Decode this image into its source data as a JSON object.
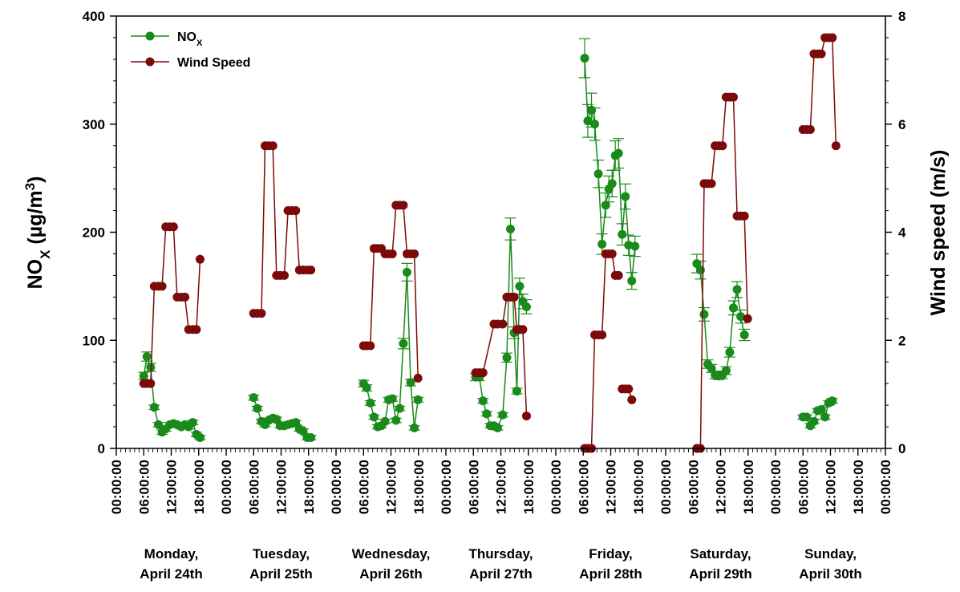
{
  "chart_data": {
    "type": "line",
    "title": "",
    "xlabel": "",
    "y_left_label_main": "NO",
    "y_left_label_sub": "X",
    "y_left_label_unit": " (µg/m",
    "y_left_label_sup": "3",
    "y_left_label_close": ")",
    "y_right_label": "Wind speed (m/s)",
    "ylim_left": [
      0,
      400
    ],
    "ylim_right": [
      0,
      8
    ],
    "y_left_ticks": [
      "0",
      "100",
      "200",
      "300",
      "400"
    ],
    "y_right_ticks": [
      "0",
      "2",
      "4",
      "6",
      "8"
    ],
    "x_range_hours": [
      0,
      168
    ],
    "x_tick_labels": [
      "00:00:00",
      "06:00:00",
      "12:00:00",
      "18:00:00",
      "00:00:00",
      "06:00:00",
      "12:00:00",
      "18:00:00",
      "00:00:00",
      "06:00:00",
      "12:00:00",
      "18:00:00",
      "00:00:00",
      "06:00:00",
      "12:00:00",
      "18:00:00",
      "00:00:00",
      "06:00:00",
      "12:00:00",
      "18:00:00",
      "00:00:00",
      "06:00:00",
      "12:00:00",
      "18:00:00",
      "00:00:00",
      "06:00:00",
      "12:00:00",
      "18:00:00",
      "00:00:00"
    ],
    "days": [
      {
        "line1": "Monday,",
        "line2": "April 24th"
      },
      {
        "line1": "Tuesday,",
        "line2": "April 25th"
      },
      {
        "line1": "Wednesday,",
        "line2": "April 26th"
      },
      {
        "line1": "Thursday,",
        "line2": "April 27th"
      },
      {
        "line1": "Friday,",
        "line2": "April 28th"
      },
      {
        "line1": "Saturday,",
        "line2": "April 29th"
      },
      {
        "line1": "Sunday,",
        "line2": "April 30th"
      }
    ],
    "grid": false,
    "legend_position": "top-left",
    "series": [
      {
        "name": "NO",
        "name_sub": "X",
        "axis": "left",
        "color": "#1a8a1a",
        "segments": [
          [
            [
              6.0,
              67
            ],
            [
              6.7,
              85
            ],
            [
              7.5,
              75
            ],
            [
              8.3,
              38
            ],
            [
              9.2,
              22
            ],
            [
              10.0,
              15
            ],
            [
              10.8,
              18
            ],
            [
              11.7,
              22
            ],
            [
              12.5,
              23
            ],
            [
              13.3,
              22
            ],
            [
              14.2,
              20
            ],
            [
              15.0,
              22
            ],
            [
              15.8,
              20
            ],
            [
              16.7,
              24
            ],
            [
              17.5,
              13
            ],
            [
              18.3,
              10
            ]
          ],
          [
            [
              30.0,
              47
            ],
            [
              30.8,
              37
            ],
            [
              31.7,
              25
            ],
            [
              32.5,
              22
            ],
            [
              33.3,
              26
            ],
            [
              34.2,
              28
            ],
            [
              35.0,
              27
            ],
            [
              35.8,
              21
            ],
            [
              36.7,
              21
            ],
            [
              37.5,
              22
            ],
            [
              38.3,
              23
            ],
            [
              39.2,
              24
            ],
            [
              40.0,
              18
            ],
            [
              40.8,
              16
            ],
            [
              41.7,
              10
            ],
            [
              42.5,
              10
            ]
          ],
          [
            [
              54.0,
              60
            ],
            [
              54.7,
              56
            ],
            [
              55.5,
              42
            ],
            [
              56.3,
              29
            ],
            [
              57.1,
              20
            ],
            [
              57.9,
              21
            ],
            [
              58.7,
              25
            ],
            [
              59.5,
              45
            ],
            [
              60.3,
              46
            ],
            [
              61.1,
              26
            ],
            [
              61.9,
              37
            ],
            [
              62.7,
              97
            ],
            [
              63.5,
              163
            ],
            [
              64.3,
              61
            ],
            [
              65.1,
              19
            ],
            [
              65.9,
              45
            ]
          ],
          [
            [
              78.5,
              66
            ],
            [
              79.3,
              66
            ],
            [
              80.1,
              44
            ],
            [
              80.9,
              32
            ],
            [
              81.7,
              21
            ],
            [
              82.5,
              21
            ],
            [
              83.3,
              19
            ],
            [
              84.4,
              31
            ],
            [
              85.3,
              84
            ],
            [
              86.1,
              203
            ],
            [
              86.9,
              107
            ],
            [
              87.5,
              53
            ],
            [
              88.1,
              150
            ],
            [
              88.8,
              136
            ],
            [
              89.6,
              131
            ]
          ],
          [
            [
              102.3,
              361
            ],
            [
              103.0,
              303
            ],
            [
              103.8,
              313
            ],
            [
              104.5,
              300
            ],
            [
              105.3,
              254
            ],
            [
              106.1,
              189
            ],
            [
              106.9,
              225
            ],
            [
              107.6,
              240
            ],
            [
              108.3,
              245
            ],
            [
              109.0,
              271
            ],
            [
              109.7,
              273
            ],
            [
              110.5,
              198
            ],
            [
              111.2,
              233
            ],
            [
              111.9,
              188
            ],
            [
              112.6,
              155
            ],
            [
              113.3,
              187
            ]
          ],
          [
            [
              126.8,
              171
            ],
            [
              127.6,
              165
            ],
            [
              128.4,
              124
            ],
            [
              129.2,
              78
            ],
            [
              130.0,
              74
            ],
            [
              130.8,
              68
            ],
            [
              131.6,
              67
            ],
            [
              132.4,
              68
            ],
            [
              133.2,
              72
            ],
            [
              134.0,
              89
            ],
            [
              134.8,
              130
            ],
            [
              135.6,
              147
            ],
            [
              136.4,
              122
            ],
            [
              137.2,
              105
            ]
          ],
          [
            [
              150.0,
              29
            ],
            [
              150.8,
              29
            ],
            [
              151.6,
              21
            ],
            [
              152.4,
              25
            ],
            [
              153.2,
              35
            ],
            [
              154.0,
              36
            ],
            [
              154.8,
              29
            ],
            [
              155.6,
              42
            ],
            [
              156.4,
              44
            ]
          ]
        ]
      },
      {
        "name": "Wind Speed",
        "axis": "right",
        "color": "#7b0a0a",
        "segments": [
          [
            [
              6.0,
              1.2
            ],
            [
              6.7,
              1.2
            ],
            [
              7.5,
              1.2
            ],
            [
              8.3,
              3.0
            ],
            [
              9.2,
              3.0
            ],
            [
              10.0,
              3.0
            ],
            [
              10.8,
              4.1
            ],
            [
              11.7,
              4.1
            ],
            [
              12.5,
              4.1
            ],
            [
              13.3,
              2.8
            ],
            [
              14.2,
              2.8
            ],
            [
              15.0,
              2.8
            ],
            [
              15.8,
              2.2
            ],
            [
              16.7,
              2.2
            ],
            [
              17.5,
              2.2
            ],
            [
              18.3,
              3.5
            ]
          ],
          [
            [
              30.0,
              2.5
            ],
            [
              30.8,
              2.5
            ],
            [
              31.7,
              2.5
            ],
            [
              32.5,
              5.6
            ],
            [
              33.3,
              5.6
            ],
            [
              34.2,
              5.6
            ],
            [
              35.0,
              3.2
            ],
            [
              35.8,
              3.2
            ],
            [
              36.7,
              3.2
            ],
            [
              37.5,
              4.4
            ],
            [
              38.3,
              4.4
            ],
            [
              39.2,
              4.4
            ],
            [
              40.0,
              3.3
            ],
            [
              40.8,
              3.3
            ],
            [
              41.7,
              3.3
            ],
            [
              42.5,
              3.3
            ]
          ],
          [
            [
              54.0,
              1.9
            ],
            [
              54.7,
              1.9
            ],
            [
              55.5,
              1.9
            ],
            [
              56.3,
              3.7
            ],
            [
              57.1,
              3.7
            ],
            [
              57.9,
              3.7
            ],
            [
              58.7,
              3.6
            ],
            [
              59.5,
              3.6
            ],
            [
              60.3,
              3.6
            ],
            [
              61.1,
              4.5
            ],
            [
              61.9,
              4.5
            ],
            [
              62.7,
              4.5
            ],
            [
              63.5,
              3.6
            ],
            [
              64.3,
              3.6
            ],
            [
              65.1,
              3.6
            ],
            [
              65.9,
              1.3
            ]
          ],
          [
            [
              78.5,
              1.4
            ],
            [
              79.3,
              1.4
            ],
            [
              80.1,
              1.4
            ],
            [
              82.5,
              2.3
            ],
            [
              83.3,
              2.3
            ],
            [
              84.4,
              2.3
            ],
            [
              85.3,
              2.8
            ],
            [
              86.1,
              2.8
            ],
            [
              86.9,
              2.8
            ],
            [
              87.5,
              2.2
            ],
            [
              88.1,
              2.2
            ],
            [
              88.8,
              2.2
            ],
            [
              89.6,
              0.6
            ]
          ],
          [
            [
              102.3,
              0.0
            ],
            [
              103.0,
              0.0
            ],
            [
              103.8,
              0.0
            ],
            [
              104.5,
              2.1
            ],
            [
              105.3,
              2.1
            ],
            [
              106.1,
              2.1
            ],
            [
              106.9,
              3.6
            ],
            [
              107.6,
              3.6
            ],
            [
              108.3,
              3.6
            ],
            [
              109.0,
              3.2
            ],
            [
              109.7,
              3.2
            ]
          ],
          [
            [
              110.5,
              1.1
            ],
            [
              111.2,
              1.1
            ],
            [
              111.9,
              1.1
            ],
            [
              112.6,
              0.9
            ]
          ],
          [
            [
              126.8,
              0.0
            ],
            [
              127.6,
              0.0
            ],
            [
              128.4,
              4.9
            ],
            [
              129.2,
              4.9
            ],
            [
              130.0,
              4.9
            ],
            [
              130.8,
              5.6
            ],
            [
              131.6,
              5.6
            ],
            [
              132.4,
              5.6
            ],
            [
              133.2,
              6.5
            ],
            [
              134.0,
              6.5
            ],
            [
              134.8,
              6.5
            ],
            [
              135.6,
              4.3
            ],
            [
              136.4,
              4.3
            ],
            [
              137.2,
              4.3
            ],
            [
              137.9,
              2.4
            ]
          ],
          [
            [
              150.0,
              5.9
            ],
            [
              150.8,
              5.9
            ],
            [
              151.6,
              5.9
            ],
            [
              152.4,
              7.3
            ],
            [
              153.2,
              7.3
            ],
            [
              154.0,
              7.3
            ],
            [
              154.8,
              7.6
            ],
            [
              155.6,
              7.6
            ],
            [
              156.4,
              7.6
            ],
            [
              157.2,
              5.6
            ]
          ]
        ]
      }
    ],
    "colors": {
      "nox": "#1a8a1a",
      "wind": "#7b0a0a",
      "axis": "#000000"
    }
  }
}
